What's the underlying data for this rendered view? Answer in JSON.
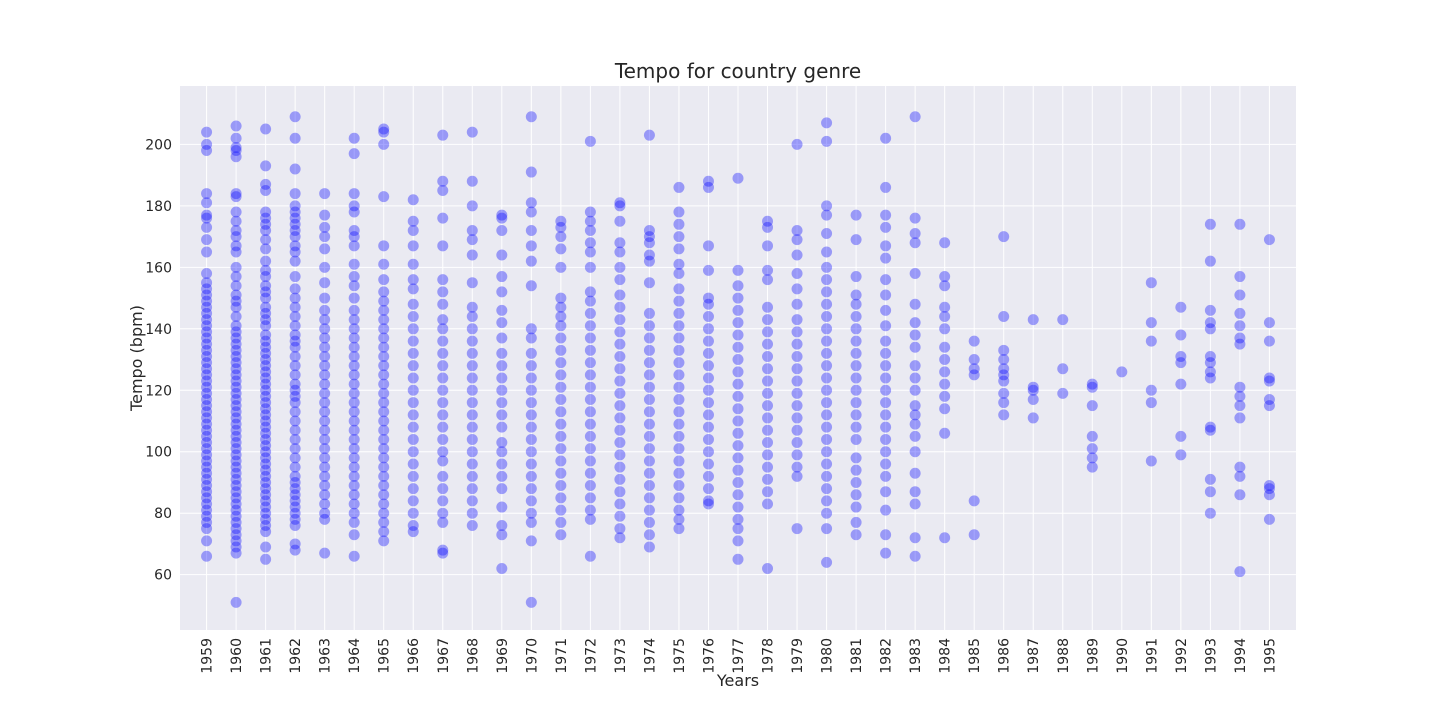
{
  "chart_data": {
    "type": "scatter",
    "title": "Tempo for country genre",
    "xlabel": "Years",
    "ylabel": "Tempo (bpm)",
    "categories": [
      "1959",
      "1960",
      "1961",
      "1962",
      "1963",
      "1964",
      "1965",
      "1966",
      "1967",
      "1968",
      "1969",
      "1970",
      "1971",
      "1972",
      "1973",
      "1974",
      "1975",
      "1976",
      "1977",
      "1978",
      "1979",
      "1980",
      "1981",
      "1982",
      "1983",
      "1984",
      "1985",
      "1986",
      "1987",
      "1988",
      "1989",
      "1990",
      "1991",
      "1992",
      "1993",
      "1994",
      "1995"
    ],
    "yticks": [
      60,
      80,
      100,
      120,
      140,
      160,
      180,
      200
    ],
    "ylim": [
      42,
      219
    ],
    "grid": true,
    "background": "#eaeaf2",
    "point_color": "#0000ff",
    "point_opacity": 0.35,
    "points": {
      "1959": [
        204,
        200,
        198,
        184,
        181,
        177,
        176,
        173,
        169,
        165,
        158,
        155,
        153,
        151,
        149,
        147,
        145,
        143,
        141,
        139,
        137,
        135,
        133,
        131,
        129,
        127,
        125,
        123,
        121,
        119,
        117,
        115,
        113,
        111,
        109,
        107,
        105,
        103,
        101,
        99,
        97,
        95,
        93,
        91,
        89,
        87,
        85,
        83,
        81,
        79,
        77,
        75,
        71,
        66
      ],
      "1960": [
        206,
        202,
        199,
        198,
        196,
        184,
        183,
        178,
        175,
        172,
        170,
        167,
        165,
        160,
        157,
        154,
        151,
        149,
        147,
        144,
        141,
        139,
        137,
        135,
        133,
        131,
        129,
        127,
        125,
        123,
        121,
        119,
        117,
        115,
        113,
        111,
        109,
        107,
        105,
        103,
        101,
        99,
        97,
        95,
        93,
        91,
        89,
        87,
        85,
        83,
        81,
        79,
        77,
        75,
        73,
        71,
        69,
        67,
        51
      ],
      "1961": [
        205,
        193,
        187,
        185,
        178,
        176,
        174,
        172,
        169,
        166,
        162,
        159,
        157,
        154,
        152,
        150,
        147,
        145,
        143,
        141,
        138,
        136,
        134,
        132,
        130,
        128,
        126,
        124,
        122,
        120,
        118,
        116,
        114,
        112,
        110,
        108,
        106,
        104,
        102,
        100,
        98,
        96,
        94,
        92,
        90,
        88,
        86,
        84,
        82,
        80,
        78,
        76,
        74,
        69,
        65
      ],
      "1962": [
        209,
        202,
        192,
        184,
        180,
        178,
        176,
        174,
        172,
        170,
        167,
        165,
        162,
        157,
        153,
        150,
        147,
        144,
        141,
        138,
        136,
        134,
        131,
        128,
        125,
        122,
        120,
        118,
        116,
        113,
        110,
        107,
        104,
        101,
        98,
        95,
        92,
        90,
        88,
        86,
        84,
        82,
        80,
        78,
        76,
        70,
        68
      ],
      "1963": [
        184,
        177,
        173,
        170,
        166,
        160,
        155,
        150,
        146,
        143,
        140,
        137,
        134,
        131,
        128,
        125,
        122,
        119,
        116,
        113,
        110,
        107,
        104,
        101,
        98,
        95,
        92,
        89,
        86,
        83,
        80,
        78,
        67
      ],
      "1964": [
        202,
        197,
        184,
        180,
        178,
        172,
        170,
        167,
        161,
        157,
        154,
        150,
        146,
        143,
        140,
        137,
        134,
        131,
        128,
        125,
        122,
        119,
        116,
        113,
        110,
        107,
        104,
        101,
        98,
        95,
        92,
        89,
        86,
        83,
        80,
        77,
        73,
        66
      ],
      "1965": [
        205,
        204,
        200,
        183,
        167,
        161,
        156,
        152,
        149,
        146,
        143,
        140,
        137,
        134,
        131,
        128,
        125,
        122,
        119,
        116,
        113,
        110,
        107,
        104,
        101,
        98,
        95,
        92,
        89,
        86,
        83,
        80,
        77,
        74,
        71
      ],
      "1966": [
        182,
        175,
        172,
        167,
        161,
        156,
        153,
        148,
        144,
        140,
        136,
        132,
        128,
        124,
        120,
        116,
        112,
        108,
        104,
        100,
        96,
        92,
        88,
        84,
        80,
        76,
        74
      ],
      "1967": [
        203,
        188,
        185,
        176,
        167,
        156,
        152,
        148,
        143,
        140,
        136,
        132,
        128,
        124,
        120,
        116,
        112,
        108,
        104,
        100,
        97,
        92,
        88,
        84,
        80,
        77,
        68,
        67
      ],
      "1968": [
        204,
        188,
        180,
        172,
        169,
        164,
        155,
        147,
        144,
        140,
        136,
        132,
        128,
        124,
        120,
        116,
        112,
        108,
        104,
        100,
        96,
        92,
        88,
        84,
        80,
        76
      ],
      "1969": [
        177,
        176,
        172,
        164,
        157,
        152,
        146,
        142,
        137,
        132,
        128,
        124,
        120,
        116,
        112,
        108,
        103,
        100,
        96,
        92,
        88,
        82,
        76,
        73,
        62
      ],
      "1970": [
        209,
        191,
        181,
        178,
        172,
        167,
        162,
        154,
        140,
        137,
        132,
        128,
        124,
        120,
        116,
        112,
        108,
        104,
        100,
        96,
        92,
        88,
        84,
        80,
        77,
        71,
        51
      ],
      "1971": [
        175,
        173,
        170,
        166,
        160,
        150,
        147,
        144,
        141,
        137,
        133,
        129,
        125,
        121,
        117,
        113,
        109,
        105,
        101,
        97,
        93,
        89,
        85,
        81,
        77,
        73
      ],
      "1972": [
        201,
        178,
        175,
        172,
        168,
        165,
        160,
        152,
        149,
        145,
        141,
        137,
        133,
        129,
        125,
        121,
        117,
        113,
        109,
        105,
        101,
        97,
        93,
        89,
        85,
        81,
        78,
        66
      ],
      "1973": [
        181,
        180,
        175,
        168,
        165,
        160,
        156,
        151,
        147,
        143,
        139,
        135,
        131,
        127,
        123,
        119,
        115,
        111,
        107,
        103,
        99,
        95,
        91,
        87,
        83,
        79,
        75,
        72
      ],
      "1974": [
        203,
        172,
        170,
        168,
        164,
        162,
        155,
        145,
        141,
        137,
        133,
        129,
        125,
        121,
        117,
        113,
        109,
        105,
        101,
        97,
        93,
        89,
        85,
        81,
        77,
        73,
        69
      ],
      "1975": [
        186,
        178,
        174,
        170,
        166,
        161,
        158,
        153,
        149,
        145,
        141,
        137,
        133,
        129,
        125,
        121,
        117,
        113,
        109,
        105,
        101,
        97,
        93,
        89,
        85,
        81,
        78,
        75
      ],
      "1976": [
        188,
        186,
        167,
        159,
        150,
        148,
        144,
        140,
        136,
        132,
        128,
        124,
        120,
        116,
        112,
        108,
        104,
        100,
        96,
        92,
        88,
        84,
        83
      ],
      "1977": [
        189,
        159,
        154,
        150,
        146,
        142,
        138,
        134,
        130,
        126,
        122,
        118,
        114,
        110,
        106,
        102,
        98,
        94,
        90,
        86,
        82,
        78,
        75,
        71,
        65
      ],
      "1978": [
        175,
        173,
        167,
        159,
        156,
        147,
        143,
        139,
        135,
        131,
        127,
        123,
        119,
        115,
        111,
        107,
        103,
        99,
        95,
        91,
        87,
        83,
        62
      ],
      "1979": [
        200,
        172,
        169,
        164,
        158,
        153,
        148,
        143,
        139,
        135,
        131,
        127,
        123,
        119,
        115,
        111,
        107,
        103,
        99,
        95,
        92,
        75
      ],
      "1980": [
        207,
        201,
        180,
        177,
        171,
        165,
        160,
        156,
        152,
        148,
        144,
        140,
        136,
        132,
        128,
        124,
        120,
        116,
        112,
        108,
        104,
        100,
        96,
        92,
        88,
        84,
        80,
        75,
        64
      ],
      "1981": [
        177,
        169,
        157,
        151,
        148,
        144,
        140,
        136,
        132,
        128,
        124,
        120,
        116,
        112,
        108,
        104,
        98,
        94,
        90,
        86,
        82,
        77,
        73
      ],
      "1982": [
        202,
        186,
        177,
        173,
        167,
        163,
        156,
        151,
        146,
        141,
        136,
        132,
        128,
        124,
        120,
        116,
        112,
        108,
        104,
        100,
        96,
        92,
        87,
        81,
        73,
        67
      ],
      "1983": [
        209,
        176,
        171,
        168,
        158,
        148,
        142,
        138,
        134,
        128,
        124,
        120,
        115,
        112,
        109,
        105,
        100,
        93,
        87,
        83,
        72,
        66
      ],
      "1984": [
        168,
        157,
        154,
        147,
        144,
        140,
        134,
        130,
        126,
        122,
        118,
        114,
        106,
        72
      ],
      "1985": [
        136,
        130,
        127,
        125,
        84,
        73
      ],
      "1986": [
        170,
        144,
        133,
        130,
        127,
        125,
        123,
        119,
        116,
        112
      ],
      "1987": [
        143,
        121,
        120,
        117,
        111
      ],
      "1988": [
        143,
        127,
        119
      ],
      "1989": [
        122,
        121,
        115,
        105,
        101,
        98,
        95
      ],
      "1990": [
        126
      ],
      "1991": [
        155,
        142,
        136,
        120,
        116,
        97
      ],
      "1992": [
        147,
        138,
        131,
        129,
        122,
        105,
        99
      ],
      "1993": [
        174,
        162,
        146,
        142,
        140,
        131,
        129,
        126,
        124,
        108,
        107,
        91,
        87,
        80
      ],
      "1994": [
        174,
        157,
        151,
        145,
        141,
        137,
        135,
        121,
        118,
        115,
        111,
        95,
        92,
        86,
        61
      ],
      "1995": [
        169,
        142,
        136,
        124,
        123,
        117,
        115,
        89,
        88,
        86,
        78
      ]
    }
  }
}
